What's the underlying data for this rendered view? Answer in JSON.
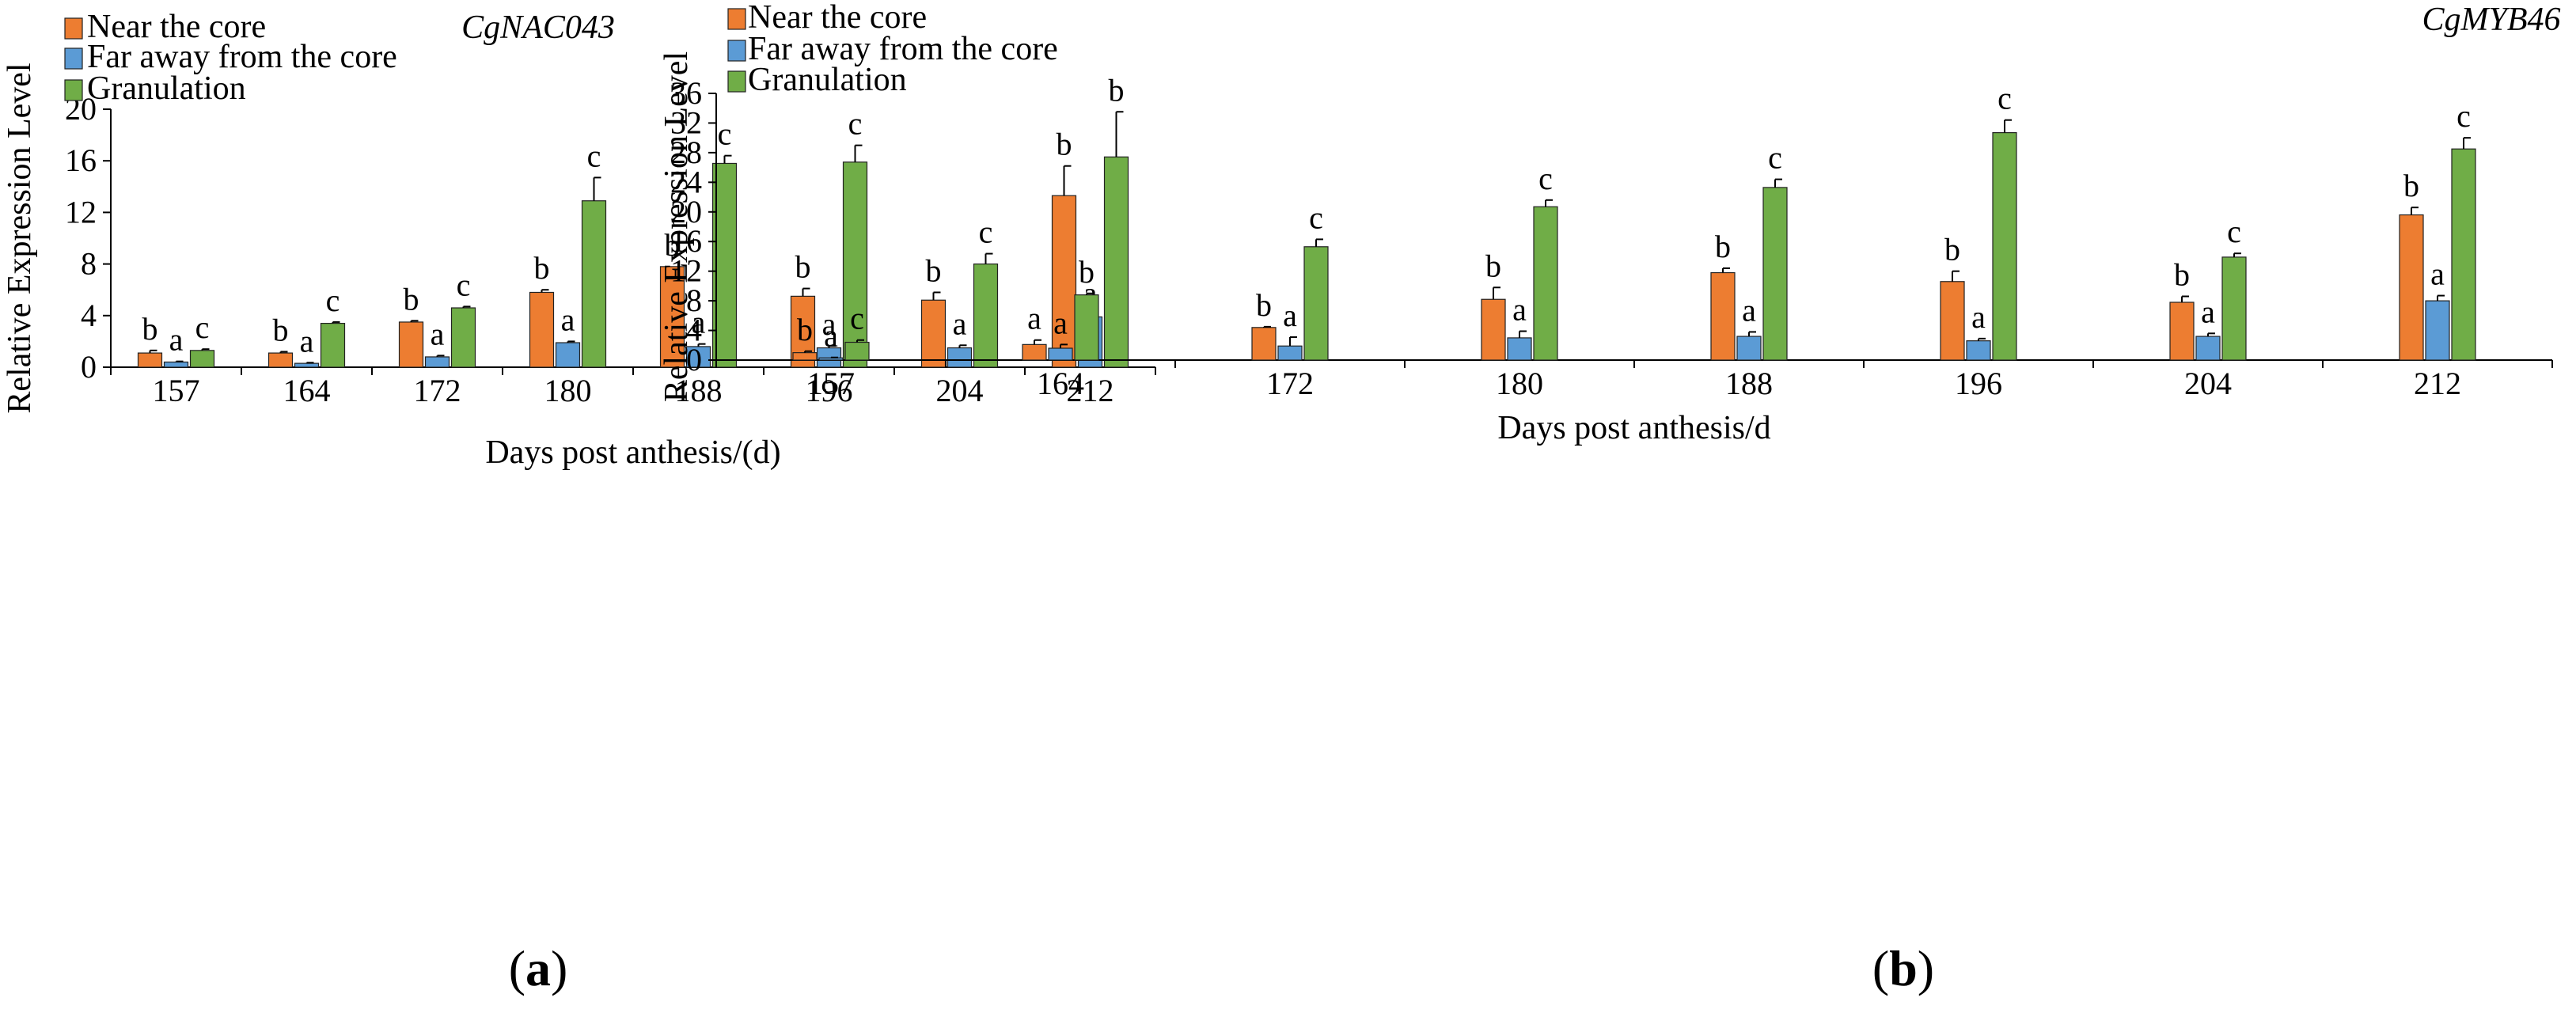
{
  "chart_data": [
    {
      "type": "bar",
      "panel_label": "a",
      "gene": "CgNAC043",
      "xlabel": "Days post anthesis/(d)",
      "ylabel": "Relative Expression Level",
      "ylim": [
        0,
        20
      ],
      "yticks": [
        0,
        4,
        8,
        12,
        16,
        20
      ],
      "categories": [
        "157",
        "164",
        "172",
        "180",
        "188",
        "196",
        "204",
        "212"
      ],
      "legend_position": "top-left",
      "series": [
        {
          "name": "Near the core",
          "color": "#ED7D31",
          "values": [
            1.1,
            1.1,
            3.5,
            5.8,
            7.8,
            5.5,
            5.2,
            13.3
          ],
          "errors": [
            0.2,
            0.1,
            0.1,
            0.2,
            0.0,
            0.6,
            0.6,
            2.3
          ],
          "labels": [
            "b",
            "b",
            "b",
            "b",
            "b",
            "b",
            "b",
            "b"
          ]
        },
        {
          "name": "Far away from the core",
          "color": "#5B9BD5",
          "values": [
            0.4,
            0.3,
            0.8,
            1.9,
            1.6,
            1.5,
            1.5,
            3.9
          ],
          "errors": [
            0.05,
            0.05,
            0.1,
            0.1,
            0.2,
            0.15,
            0.2,
            0.15
          ],
          "labels": [
            "a",
            "a",
            "a",
            "a",
            "a",
            "a",
            "a",
            "a"
          ]
        },
        {
          "name": "Granulation",
          "color": "#70AD47",
          "values": [
            1.3,
            3.4,
            4.6,
            12.9,
            15.8,
            15.9,
            8.0,
            16.3
          ],
          "errors": [
            0.1,
            0.1,
            0.1,
            1.8,
            0.6,
            1.3,
            0.8,
            3.5
          ],
          "labels": [
            "c",
            "c",
            "c",
            "c",
            "c",
            "c",
            "c",
            "b"
          ]
        }
      ]
    },
    {
      "type": "bar",
      "panel_label": "b",
      "gene": "CgMYB46",
      "xlabel": "Days post anthesis/d",
      "ylabel": "Relative Expression Level",
      "ylim": [
        0,
        36
      ],
      "yticks": [
        0,
        4,
        8,
        12,
        16,
        20,
        24,
        28,
        32,
        36
      ],
      "categories": [
        "157",
        "164",
        "172",
        "180",
        "188",
        "196",
        "204",
        "212"
      ],
      "legend_position": "top-left",
      "series": [
        {
          "name": "Near the core",
          "color": "#ED7D31",
          "values": [
            1.0,
            2.1,
            4.4,
            8.2,
            11.8,
            10.6,
            7.8,
            19.6
          ],
          "errors": [
            0.2,
            0.6,
            0.1,
            1.6,
            0.6,
            1.4,
            0.8,
            1.0
          ],
          "labels": [
            "b",
            "a",
            "b",
            "b",
            "b",
            "b",
            "b",
            "b"
          ]
        },
        {
          "name": "Far away from the core",
          "color": "#5B9BD5",
          "values": [
            0.3,
            1.6,
            1.9,
            3.0,
            3.2,
            2.6,
            3.2,
            8.0
          ],
          "errors": [
            0.05,
            0.5,
            1.2,
            0.9,
            0.6,
            0.3,
            0.4,
            0.7
          ],
          "labels": [
            "a",
            "a",
            "a",
            "a",
            "a",
            "a",
            "a",
            "a"
          ]
        },
        {
          "name": "Granulation",
          "color": "#70AD47",
          "values": [
            2.4,
            8.8,
            15.3,
            20.7,
            23.3,
            30.7,
            13.9,
            28.5
          ],
          "errors": [
            0.3,
            0.2,
            1.0,
            0.9,
            1.1,
            1.7,
            0.5,
            1.5
          ],
          "labels": [
            "c",
            "b",
            "c",
            "c",
            "c",
            "c",
            "c",
            "c"
          ]
        }
      ]
    }
  ]
}
